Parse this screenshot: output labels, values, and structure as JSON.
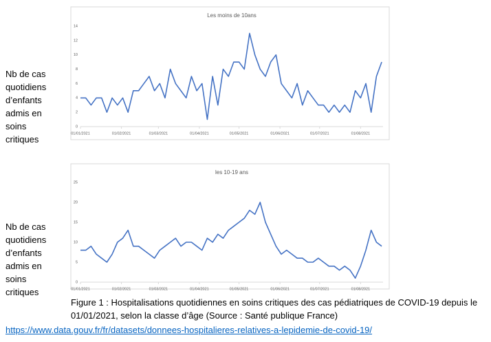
{
  "chart_data": [
    {
      "type": "line",
      "title": "Les moins de 10ans",
      "side_label": "Nb de cas quotidiens d’enfants admis en soins critiques",
      "x": [
        "01/01/2021",
        "05/01/2021",
        "09/01/2021",
        "13/01/2021",
        "17/01/2021",
        "21/01/2021",
        "25/01/2021",
        "29/01/2021",
        "02/02/2021",
        "06/02/2021",
        "10/02/2021",
        "14/02/2021",
        "18/02/2021",
        "22/02/2021",
        "26/02/2021",
        "02/03/2021",
        "06/03/2021",
        "10/03/2021",
        "14/03/2021",
        "18/03/2021",
        "22/03/2021",
        "26/03/2021",
        "30/03/2021",
        "03/04/2021",
        "07/04/2021",
        "11/04/2021",
        "15/04/2021",
        "19/04/2021",
        "23/04/2021",
        "27/04/2021",
        "01/05/2021",
        "05/05/2021",
        "09/05/2021",
        "13/05/2021",
        "17/05/2021",
        "21/05/2021",
        "25/05/2021",
        "29/05/2021",
        "02/06/2021",
        "06/06/2021",
        "10/06/2021",
        "14/06/2021",
        "18/06/2021",
        "22/06/2021",
        "26/06/2021",
        "30/06/2021",
        "04/07/2021",
        "08/07/2021",
        "12/07/2021",
        "16/07/2021",
        "20/07/2021",
        "24/07/2021",
        "28/07/2021",
        "01/08/2021",
        "05/08/2021",
        "09/08/2021",
        "13/08/2021",
        "17/08/2021"
      ],
      "series": [
        {
          "color": "#4472c4",
          "values": [
            4,
            4,
            3,
            4,
            4,
            2,
            4,
            3,
            4,
            2,
            5,
            5,
            6,
            7,
            5,
            6,
            4,
            8,
            6,
            5,
            4,
            7,
            5,
            6,
            1,
            7,
            3,
            8,
            7,
            9,
            9,
            8,
            13,
            10,
            8,
            7,
            9,
            10,
            6,
            5,
            4,
            6,
            3,
            5,
            4,
            3,
            3,
            2,
            3,
            2,
            3,
            2,
            5,
            4,
            6,
            2,
            7,
            9
          ]
        }
      ],
      "xlim": [
        "01/01/2021",
        "18/08/2021"
      ],
      "xticks": [
        "01/01/2021",
        "01/02/2021",
        "01/03/2021",
        "01/04/2021",
        "01/05/2021",
        "01/06/2021",
        "01/07/2021",
        "01/08/2021"
      ],
      "ylim": [
        0,
        14
      ],
      "yticks": [
        0,
        2,
        4,
        6,
        8,
        10,
        12,
        14
      ],
      "grid": false
    },
    {
      "type": "line",
      "title": "les 10-19 ans",
      "side_label": "Nb de cas quotidiens d’enfants admis en soins critiques",
      "x": [
        "01/01/2021",
        "05/01/2021",
        "09/01/2021",
        "13/01/2021",
        "17/01/2021",
        "21/01/2021",
        "25/01/2021",
        "29/01/2021",
        "02/02/2021",
        "06/02/2021",
        "10/02/2021",
        "14/02/2021",
        "18/02/2021",
        "22/02/2021",
        "26/02/2021",
        "02/03/2021",
        "06/03/2021",
        "10/03/2021",
        "14/03/2021",
        "18/03/2021",
        "22/03/2021",
        "26/03/2021",
        "30/03/2021",
        "03/04/2021",
        "07/04/2021",
        "11/04/2021",
        "15/04/2021",
        "19/04/2021",
        "23/04/2021",
        "27/04/2021",
        "01/05/2021",
        "05/05/2021",
        "09/05/2021",
        "13/05/2021",
        "17/05/2021",
        "21/05/2021",
        "25/05/2021",
        "29/05/2021",
        "02/06/2021",
        "06/06/2021",
        "10/06/2021",
        "14/06/2021",
        "18/06/2021",
        "22/06/2021",
        "26/06/2021",
        "30/06/2021",
        "04/07/2021",
        "08/07/2021",
        "12/07/2021",
        "16/07/2021",
        "20/07/2021",
        "24/07/2021",
        "28/07/2021",
        "01/08/2021",
        "05/08/2021",
        "09/08/2021",
        "13/08/2021",
        "17/08/2021"
      ],
      "series": [
        {
          "color": "#4472c4",
          "values": [
            8,
            8,
            9,
            7,
            6,
            5,
            7,
            10,
            11,
            13,
            9,
            9,
            8,
            7,
            6,
            8,
            9,
            10,
            11,
            9,
            10,
            10,
            9,
            8,
            11,
            10,
            12,
            11,
            13,
            14,
            15,
            16,
            18,
            17,
            20,
            15,
            12,
            9,
            7,
            8,
            7,
            6,
            6,
            5,
            5,
            6,
            5,
            4,
            4,
            3,
            4,
            3,
            1,
            4,
            8,
            13,
            10,
            9
          ]
        }
      ],
      "xlim": [
        "01/01/2021",
        "18/08/2021"
      ],
      "xticks": [
        "01/01/2021",
        "01/02/2021",
        "01/03/2021",
        "01/04/2021",
        "01/05/2021",
        "01/06/2021",
        "01/07/2021",
        "01/08/2021"
      ],
      "ylim": [
        0,
        25
      ],
      "yticks": [
        0,
        5,
        10,
        15,
        20,
        25
      ],
      "grid": false
    }
  ],
  "caption": "Figure 1 : Hospitalisations quotidiennes en soins critiques des cas pédiatriques de COVID-19 depuis le 01/01/2021, selon la classe d’âge (Source : Santé publique France)",
  "link": "https://www.data.gouv.fr/fr/datasets/donnees-hospitalieres-relatives-a-lepidemie-de-covid-19/"
}
